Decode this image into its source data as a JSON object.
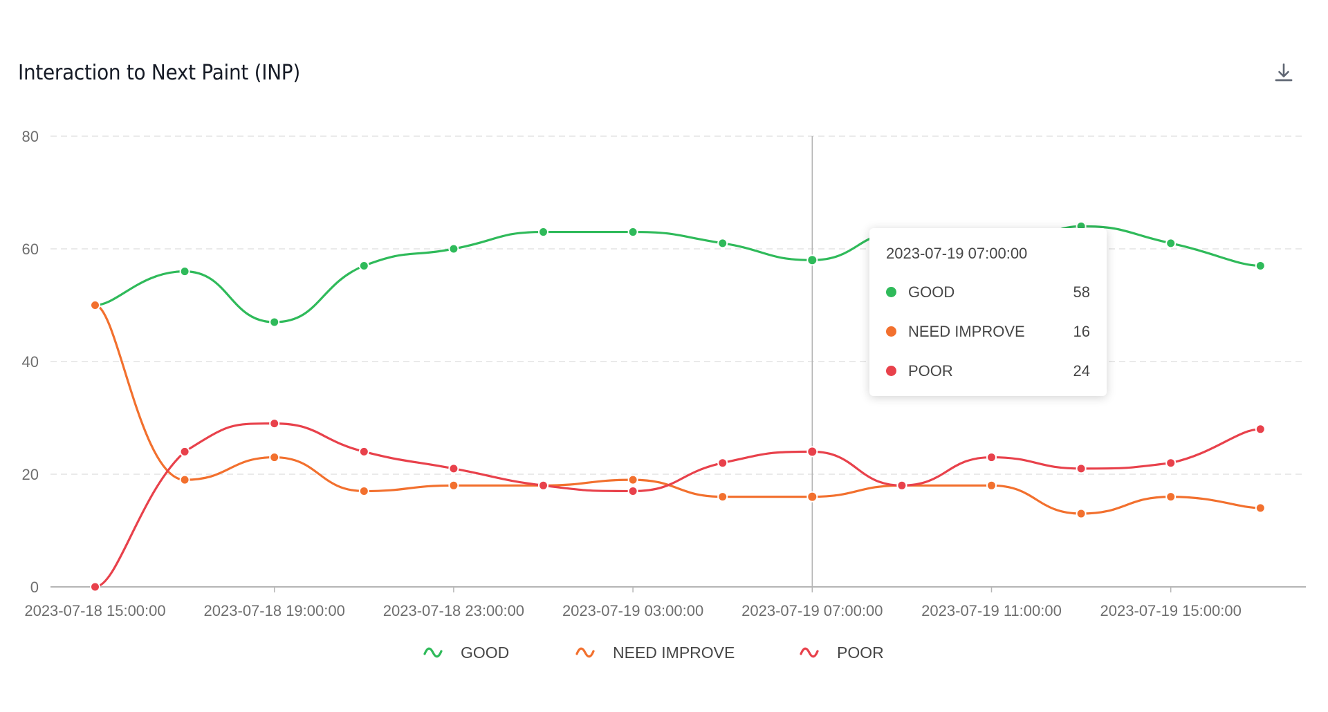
{
  "header": {
    "title": "Interaction to Next Paint (INP)",
    "download_icon": "download-icon"
  },
  "tooltip": {
    "title": "2023-07-19 07:00:00",
    "rows": [
      {
        "label": "GOOD",
        "value": "58",
        "color": "#2fba5a"
      },
      {
        "label": "NEED IMPROVE",
        "value": "16",
        "color": "#f2702e"
      },
      {
        "label": "POOR",
        "value": "24",
        "color": "#e8414b"
      }
    ]
  },
  "legend": {
    "items": [
      {
        "label": "GOOD",
        "color": "#2fba5a",
        "icon": "wave-icon"
      },
      {
        "label": "NEED IMPROVE",
        "color": "#f2702e",
        "icon": "wave-icon"
      },
      {
        "label": "POOR",
        "color": "#e8414b",
        "icon": "wave-icon"
      }
    ]
  },
  "chart_data": {
    "type": "line",
    "title": "Interaction to Next Paint (INP)",
    "xlabel": "",
    "ylabel": "",
    "ylim": [
      0,
      80
    ],
    "yticks": [
      0,
      20,
      40,
      60,
      80
    ],
    "grid": true,
    "legend_position": "bottom",
    "x": [
      "2023-07-18 15:00:00",
      "2023-07-18 17:00:00",
      "2023-07-18 19:00:00",
      "2023-07-18 21:00:00",
      "2023-07-18 23:00:00",
      "2023-07-19 01:00:00",
      "2023-07-19 03:00:00",
      "2023-07-19 05:00:00",
      "2023-07-19 07:00:00",
      "2023-07-19 09:00:00",
      "2023-07-19 11:00:00",
      "2023-07-19 13:00:00",
      "2023-07-19 15:00:00",
      "2023-07-19 17:00:00"
    ],
    "xtick_labels": [
      "2023-07-18 15:00:00",
      "2023-07-18 19:00:00",
      "2023-07-18 23:00:00",
      "2023-07-19 03:00:00",
      "2023-07-19 07:00:00",
      "2023-07-19 11:00:00",
      "2023-07-19 15:00:00"
    ],
    "series": [
      {
        "name": "GOOD",
        "color": "#2fba5a",
        "values": [
          50,
          56,
          47,
          57,
          60,
          63,
          63,
          61,
          58,
          63,
          58,
          64,
          61,
          57
        ]
      },
      {
        "name": "NEED IMPROVE",
        "color": "#f2702e",
        "values": [
          50,
          19,
          23,
          17,
          18,
          18,
          19,
          16,
          16,
          18,
          18,
          13,
          16,
          14
        ]
      },
      {
        "name": "POOR",
        "color": "#e8414b",
        "values": [
          0,
          24,
          29,
          24,
          21,
          18,
          17,
          22,
          24,
          18,
          23,
          21,
          22,
          28
        ]
      }
    ],
    "highlighted_index": 8
  }
}
